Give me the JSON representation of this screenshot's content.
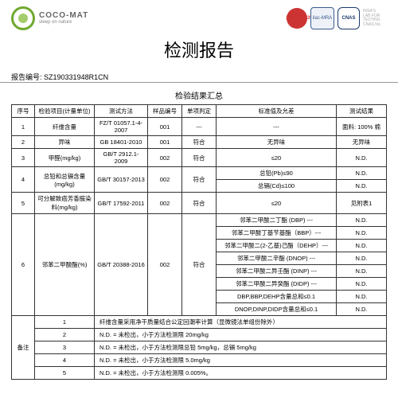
{
  "brand": {
    "name": "COCO-MAT",
    "tag": "sleep on nature"
  },
  "title": "检测报告",
  "report_code_label": "报告编号:",
  "report_code": "SZ190331948R1CN",
  "subtitle": "检验结果汇总",
  "headers": {
    "seq": "序号",
    "item": "检验项目(计量单位)",
    "method": "测试方法",
    "sample": "样品编号",
    "judge": "单项判定",
    "limit": "标准值及允差",
    "result": "测试结果"
  },
  "rows": [
    {
      "seq": "1",
      "item": "纤维含量",
      "method": "FZ/T 01057.1-4-2007",
      "sample": "001",
      "judge": "---",
      "limit": "---",
      "result": "面料: 100% 棉"
    },
    {
      "seq": "2",
      "item": "异味",
      "method": "GB 18401-2010",
      "sample": "001",
      "judge": "符合",
      "limit": "无异味",
      "result": "无异味"
    },
    {
      "seq": "3",
      "item": "甲醛(mg/kg)",
      "method": "GB/T 2912.1-2009",
      "sample": "002",
      "judge": "符合",
      "limit": "≤20",
      "result": "N.D."
    },
    {
      "seq": "4",
      "item": "总铅和总镉含量(mg/kg)",
      "method": "GB/T 30157-2013",
      "sample": "002",
      "judge": "符合",
      "sublimits": [
        "总铅(Pb)≤90",
        "总镉(Cd)≤100"
      ],
      "result": [
        "N.D.",
        "N.D."
      ]
    },
    {
      "seq": "5",
      "item": "可分解致癌芳香胺染料(mg/kg)",
      "method": "GB/T 17592-2011",
      "sample": "002",
      "judge": "符合",
      "limit": "≤20",
      "result": "见附表1"
    },
    {
      "seq": "6",
      "item": "邻苯二甲酸酯(%)",
      "method": "GB/T 20388-2016",
      "sample": "002",
      "judge": "符合",
      "sublimits": [
        "邻苯二甲酸二丁酯 (DBP) ---",
        "邻苯二甲酸丁基苄基酯（BBP）---",
        "邻苯二甲酸二(2-乙基)己酯（DEHP）---",
        "邻苯二甲酸二辛酯 (DNOP) ---",
        "邻苯二甲酸二异壬酯 (DINP) ---",
        "邻苯二甲酸二异癸酯 (DIDP) ---",
        "DBP,BBP,DEHP含量总和≤0.1",
        "DNOP,DINP,DIDP含量总和≤0.1"
      ],
      "result": [
        "N.D.",
        "N.D.",
        "N.D.",
        "N.D.",
        "N.D.",
        "N.D.",
        "N.D.",
        "N.D."
      ]
    }
  ],
  "notes_label": "备注",
  "notes": [
    "纤维含量采用净干质量结合公定回潮率计算（显微镜法单组份除外）",
    "N.D. = 未检出，小于方法检测限 20mg/kg",
    "N.D. = 未检出，小于方法检测限总铅 5mg/kg，总镉 5mg/kg",
    "N.D. = 未检出，小于方法检测限 5.0mg/kg",
    "N.D. = 未检出，小于方法检测限 0.005%。"
  ]
}
